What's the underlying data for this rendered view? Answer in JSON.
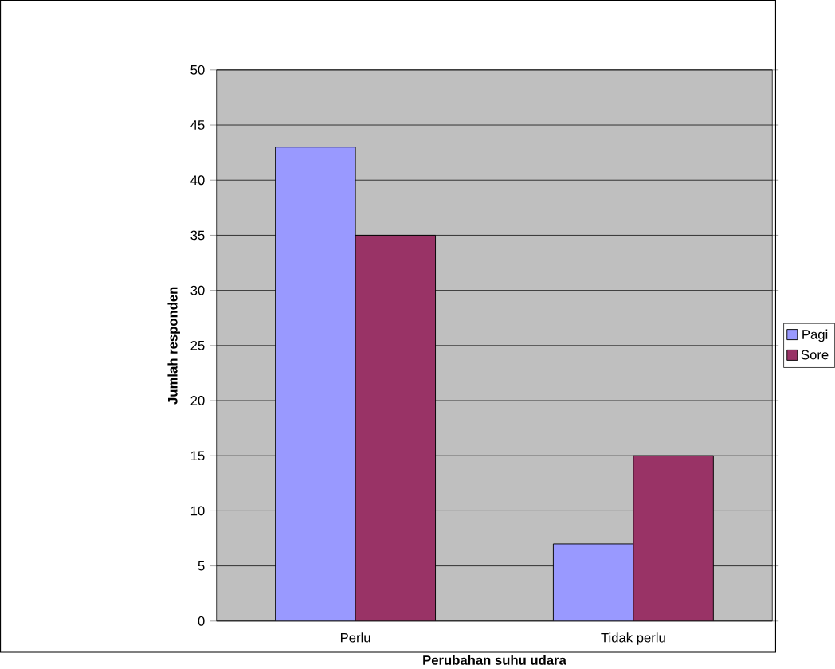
{
  "chart_data": {
    "type": "bar",
    "categories": [
      "Perlu",
      "Tidak perlu"
    ],
    "series": [
      {
        "name": "Pagi",
        "color": "#9999ff",
        "values": [
          43,
          7
        ]
      },
      {
        "name": "Sore",
        "color": "#993366",
        "values": [
          35,
          15
        ]
      }
    ],
    "xlabel": "Perubahan suhu udara",
    "ylabel": "Jumlah responden",
    "ylim": [
      0,
      50
    ],
    "yticks": [
      0,
      5,
      10,
      15,
      20,
      25,
      30,
      35,
      40,
      45,
      50
    ],
    "grid": "y",
    "legend": "right"
  }
}
